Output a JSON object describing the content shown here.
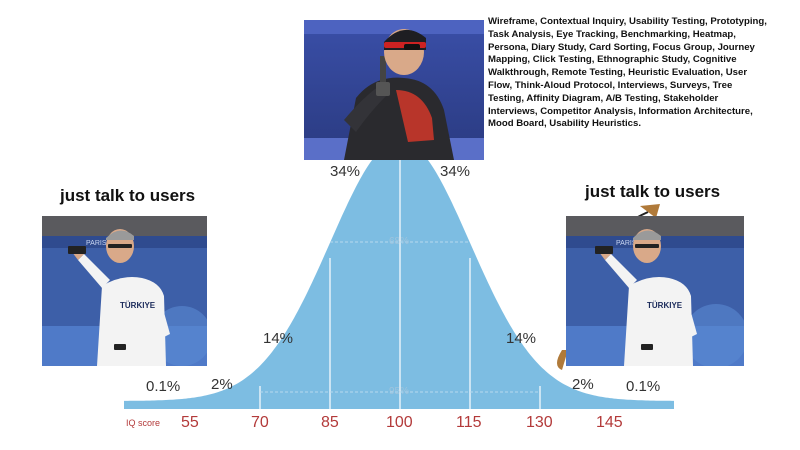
{
  "meme": {
    "left_caption": "just talk to users",
    "right_caption": "just talk to users",
    "methods_text": "Wireframe, Contextual Inquiry, Usability Testing, Prototyping, Task Analysis, Eye Tracking, Benchmarking, Heatmap, Persona, Diary Study, Card Sorting, Focus Group, Journey Mapping, Click Testing, Ethnographic Study, Cognitive Walkthrough, Remote Testing, Heuristic Evaluation, User Flow, Think-Aloud Protocol, Interviews, Surveys, Tree Testing, Affinity Diagram, A/B Testing, Stakeholder Interviews, Competitor Analysis, Information Architecture, Mood Board, Usability Heuristics.",
    "photo_banner_text": "PARIS 2024",
    "shirt_text": "TÜRKIYE"
  },
  "bell_curve": {
    "axis_label": "IQ score",
    "ticks": [
      "55",
      "70",
      "85",
      "100",
      "115",
      "130",
      "145"
    ],
    "percent_labels": {
      "far_left": "0.1%",
      "left_tail": "2%",
      "left_mid": "14%",
      "left_center": "34%",
      "right_center": "34%",
      "right_mid": "14%",
      "right_tail": "2%",
      "far_right": "0.1%"
    },
    "inner_labels": {
      "one_sd": "68%",
      "two_sd": "95%"
    },
    "colors": {
      "fill": "#7dbde2",
      "axis_bar": "#7dbde2",
      "tick_text": "#b33a3a"
    }
  }
}
